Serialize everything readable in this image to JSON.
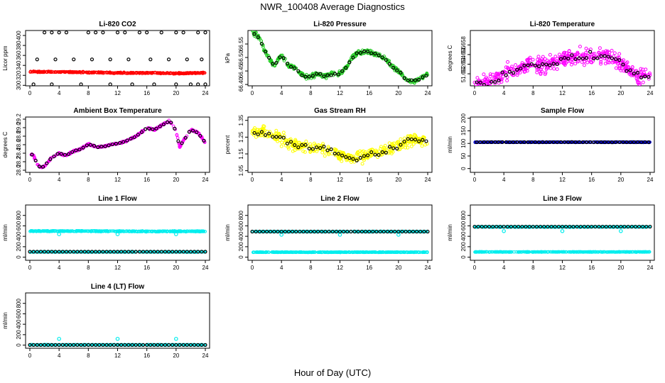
{
  "title": "NWR_100408  Average Diagnostics",
  "x_title": "Hour of Day (UTC)",
  "colors": {
    "black": "#000000",
    "red": "#ff0000",
    "green": "#22cc22",
    "magenta": "#ff00ff",
    "yellow": "#ffff00",
    "blue": "#0000cc",
    "cyan": "#00eeee"
  },
  "chart_data": [
    {
      "id": "co2",
      "type": "scatter",
      "title": "Li-820 CO2",
      "ylabel": "Licor ppm",
      "xlim": [
        0,
        24
      ],
      "ylim": [
        299,
        410
      ],
      "xticks": [
        "0",
        "4",
        "8",
        "12",
        "16",
        "20",
        "24"
      ],
      "yticks": [
        "300",
        "320",
        "340",
        "360",
        "380",
        "400"
      ],
      "series": [
        {
          "name": "red",
          "color": "red",
          "style": "band",
          "x": [
            0,
            4,
            8,
            12,
            16,
            20,
            24
          ],
          "y": [
            327,
            327,
            326,
            325,
            325,
            324,
            325
          ]
        },
        {
          "name": "black",
          "color": "black",
          "x": [
            2,
            3,
            4,
            5,
            8,
            9,
            10,
            12,
            13,
            15,
            16,
            18,
            20,
            21,
            23,
            24,
            1,
            3.5,
            6,
            8.5,
            11,
            13.5,
            16.5,
            19,
            21.5,
            23.5,
            0.5,
            3,
            7,
            11,
            14,
            17,
            20,
            22,
            23,
            24
          ],
          "y": [
            406,
            406,
            406,
            406,
            406,
            406,
            406,
            406,
            406,
            406,
            406,
            406,
            406,
            406,
            406,
            406,
            352,
            352,
            352,
            352,
            352,
            352,
            352,
            352,
            352,
            352,
            302,
            302,
            302,
            302,
            302,
            302,
            302,
            302,
            302,
            302
          ]
        }
      ]
    },
    {
      "id": "pressure",
      "type": "scatter",
      "title": "Li-820 Pressure",
      "ylabel": "kPa",
      "xlim": [
        0,
        24
      ],
      "ylim": [
        66.395,
        66.6
      ],
      "xticks": [
        "0",
        "4",
        "8",
        "12",
        "16",
        "20",
        "24"
      ],
      "yticks": [
        "66.40",
        "66.45",
        "66.50",
        "66.55"
      ],
      "series": [
        {
          "name": "green",
          "color": "green",
          "style": "band",
          "spread": 0.012,
          "x": [
            0,
            1,
            2,
            3,
            4,
            5,
            6,
            7,
            8,
            9,
            10,
            11,
            12,
            13,
            14,
            15,
            16,
            17,
            18,
            19,
            20,
            21,
            22,
            23,
            24
          ],
          "y": [
            66.595,
            66.57,
            66.51,
            66.47,
            66.51,
            66.47,
            66.46,
            66.43,
            66.43,
            66.44,
            66.43,
            66.44,
            66.44,
            66.47,
            66.51,
            66.52,
            66.52,
            66.51,
            66.5,
            66.47,
            66.45,
            66.42,
            66.41,
            66.42,
            66.44
          ]
        },
        {
          "name": "black",
          "color": "black",
          "style": "follow"
        }
      ]
    },
    {
      "id": "temp",
      "type": "scatter",
      "title": "Li-820 Temperature",
      "ylabel": "degrees C",
      "xlim": [
        0,
        24
      ],
      "ylim": [
        51.6495,
        51.661
      ],
      "xticks": [
        "0",
        "4",
        "8",
        "12",
        "16",
        "20",
        "24"
      ],
      "yticks": [
        "51.652",
        "51.654",
        "51.656",
        "51.658"
      ],
      "series": [
        {
          "name": "magenta",
          "color": "magenta",
          "style": "noisy",
          "spread": 0.0025,
          "x": [
            0,
            2,
            4,
            6,
            8,
            10,
            12,
            14,
            16,
            18,
            20,
            22,
            24
          ],
          "y": [
            51.65,
            51.65,
            51.652,
            51.653,
            51.654,
            51.654,
            51.655,
            51.6555,
            51.6555,
            51.6555,
            51.654,
            51.652,
            51.651
          ]
        },
        {
          "name": "black",
          "color": "black",
          "style": "follow"
        }
      ]
    },
    {
      "id": "boxtemp",
      "type": "scatter",
      "title": "Ambient Box Temperature",
      "ylabel": "degrees C",
      "xlim": [
        0,
        24
      ],
      "ylim": [
        27.95,
        29.25
      ],
      "xticks": [
        "0",
        "4",
        "8",
        "12",
        "16",
        "20",
        "24"
      ],
      "yticks": [
        "28.0",
        "28.2",
        "28.4",
        "28.6",
        "28.8",
        "29.0",
        "29.2"
      ],
      "series": [
        {
          "name": "magenta",
          "color": "magenta",
          "style": "band",
          "spread": 0.03,
          "x": [
            0,
            0.5,
            1,
            1.5,
            2,
            3,
            4,
            5,
            6,
            7,
            8,
            9,
            10,
            11,
            12,
            13,
            14,
            15,
            16,
            17,
            18,
            19,
            19.5,
            20,
            20.5,
            21,
            22,
            23,
            24
          ],
          "y": [
            28.4,
            28.35,
            28.15,
            28.05,
            28.1,
            28.3,
            28.4,
            28.35,
            28.45,
            28.5,
            28.62,
            28.55,
            28.55,
            28.6,
            28.62,
            28.68,
            28.75,
            28.85,
            29.0,
            28.95,
            29.05,
            29.15,
            29.1,
            28.9,
            28.55,
            28.7,
            28.95,
            28.88,
            28.65
          ]
        },
        {
          "name": "black",
          "color": "black",
          "style": "follow"
        }
      ]
    },
    {
      "id": "rh",
      "type": "scatter",
      "title": "Gas Stream RH",
      "ylabel": "percent",
      "xlim": [
        0,
        24
      ],
      "ylim": [
        1.04,
        1.37
      ],
      "xticks": [
        "0",
        "4",
        "8",
        "12",
        "16",
        "20",
        "24"
      ],
      "yticks": [
        "1.05",
        "1.15",
        "1.25",
        "1.35"
      ],
      "series": [
        {
          "name": "yellow",
          "color": "yellow",
          "style": "noisy",
          "spread": 0.05,
          "x": [
            0,
            2,
            4,
            6,
            8,
            10,
            12,
            14,
            16,
            18,
            20,
            22,
            24
          ],
          "y": [
            1.28,
            1.28,
            1.24,
            1.2,
            1.19,
            1.18,
            1.14,
            1.12,
            1.15,
            1.17,
            1.2,
            1.24,
            1.22
          ]
        },
        {
          "name": "black",
          "color": "black",
          "style": "follow"
        }
      ]
    },
    {
      "id": "sampleflow",
      "type": "scatter",
      "title": "Sample Flow",
      "ylabel": "ml/min",
      "xlim": [
        0,
        24
      ],
      "ylim": [
        -15,
        205
      ],
      "xticks": [
        "0",
        "4",
        "8",
        "12",
        "16",
        "20",
        "24"
      ],
      "yticks": [
        "0",
        "50",
        "100",
        "150",
        "200"
      ],
      "series": [
        {
          "name": "blue",
          "color": "blue",
          "style": "band",
          "spread": 1.5,
          "x": [
            0,
            24
          ],
          "y": [
            105,
            105
          ]
        },
        {
          "name": "black",
          "color": "black",
          "style": "follow"
        }
      ]
    },
    {
      "id": "line1",
      "type": "scatter",
      "title": "Line 1 Flow",
      "ylabel": "ml/min",
      "xlim": [
        0,
        24
      ],
      "ylim": [
        -60,
        1000
      ],
      "xticks": [
        "0",
        "4",
        "8",
        "12",
        "16",
        "20",
        "24"
      ],
      "yticks": [
        "0",
        "200",
        "400",
        "600",
        "800"
      ],
      "series": [
        {
          "name": "cyan-high",
          "color": "cyan",
          "style": "band",
          "spread": 12,
          "x": [
            0,
            8,
            16,
            24
          ],
          "y": [
            500,
            500,
            495,
            495
          ],
          "outliers": {
            "x": [
              4,
              12,
              20
            ],
            "y": [
              440,
              440,
              440
            ]
          }
        },
        {
          "name": "cyan-low",
          "color": "cyan",
          "style": "band",
          "spread": 6,
          "x": [
            0,
            24
          ],
          "y": [
            100,
            100
          ]
        },
        {
          "name": "black",
          "color": "black",
          "style": "points",
          "x": [
            0,
            24
          ],
          "y": [
            105,
            105
          ]
        }
      ]
    },
    {
      "id": "line2",
      "type": "scatter",
      "title": "Line 2 Flow",
      "ylabel": "ml/min",
      "xlim": [
        0,
        24
      ],
      "ylim": [
        -60,
        1000
      ],
      "xticks": [
        "0",
        "4",
        "8",
        "12",
        "16",
        "20",
        "24"
      ],
      "yticks": [
        "0",
        "200",
        "400",
        "600",
        "800"
      ],
      "series": [
        {
          "name": "cyan-high",
          "color": "cyan",
          "style": "band",
          "spread": 8,
          "x": [
            0,
            24
          ],
          "y": [
            490,
            490
          ],
          "outliers": {
            "x": [
              4,
              12,
              20
            ],
            "y": [
              430,
              430,
              430
            ]
          }
        },
        {
          "name": "cyan-low",
          "color": "cyan",
          "style": "band",
          "spread": 6,
          "x": [
            0,
            24
          ],
          "y": [
            95,
            95
          ]
        },
        {
          "name": "black",
          "color": "black",
          "style": "points",
          "x": [
            0,
            24
          ],
          "y": [
            490,
            490
          ]
        }
      ]
    },
    {
      "id": "line3",
      "type": "scatter",
      "title": "Line 3 Flow",
      "ylabel": "ml/min",
      "xlim": [
        0,
        24
      ],
      "ylim": [
        -60,
        1000
      ],
      "xticks": [
        "0",
        "4",
        "8",
        "12",
        "16",
        "20",
        "24"
      ],
      "yticks": [
        "0",
        "200",
        "400",
        "600",
        "800"
      ],
      "series": [
        {
          "name": "cyan-high",
          "color": "cyan",
          "style": "band",
          "spread": 8,
          "x": [
            0,
            24
          ],
          "y": [
            580,
            580
          ],
          "outliers": {
            "x": [
              4,
              12,
              20
            ],
            "y": [
              500,
              500,
              500
            ]
          }
        },
        {
          "name": "cyan-low",
          "color": "cyan",
          "style": "band",
          "spread": 6,
          "x": [
            0,
            24
          ],
          "y": [
            100,
            100
          ]
        },
        {
          "name": "black",
          "color": "black",
          "style": "points",
          "x": [
            0,
            24
          ],
          "y": [
            585,
            585
          ]
        }
      ]
    },
    {
      "id": "line4",
      "type": "scatter",
      "title": "Line 4 (LT) Flow",
      "ylabel": "ml/min",
      "xlim": [
        0,
        24
      ],
      "ylim": [
        -60,
        1000
      ],
      "xticks": [
        "0",
        "4",
        "8",
        "12",
        "16",
        "20",
        "24"
      ],
      "yticks": [
        "0",
        "200",
        "400",
        "600",
        "800"
      ],
      "series": [
        {
          "name": "cyan-low",
          "color": "cyan",
          "style": "band",
          "spread": 6,
          "x": [
            0,
            24
          ],
          "y": [
            5,
            5
          ],
          "outliers": {
            "x": [
              4,
              12,
              20
            ],
            "y": [
              120,
              120,
              120
            ]
          }
        },
        {
          "name": "black",
          "color": "black",
          "style": "points",
          "x": [
            0,
            24
          ],
          "y": [
            3,
            3
          ]
        }
      ]
    }
  ]
}
